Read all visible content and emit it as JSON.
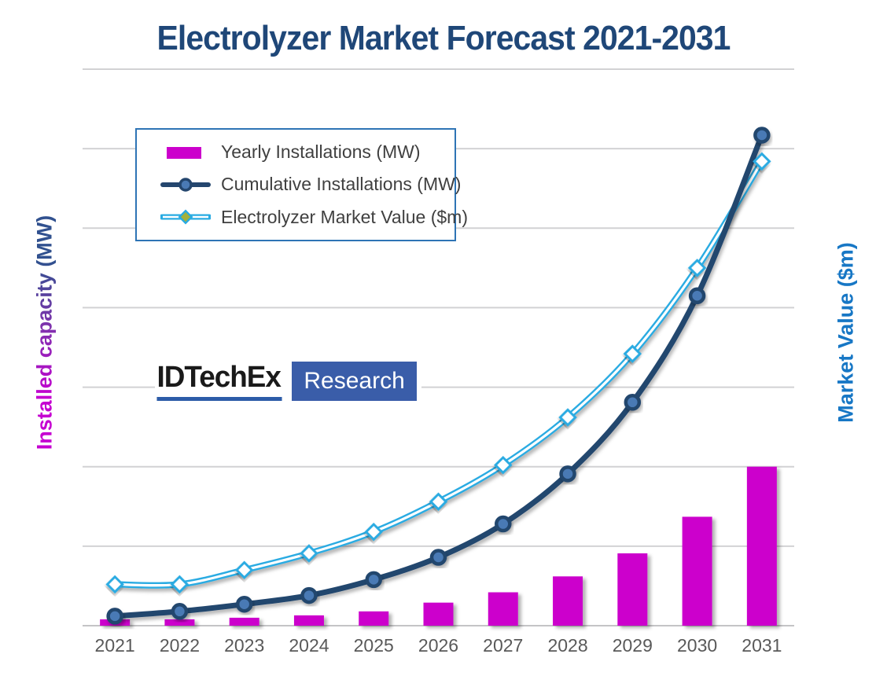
{
  "title": "Electrolyzer Market Forecast 2021-2031",
  "legend": {
    "items": [
      {
        "label": "Yearly Installations (MW)",
        "swatch": "magenta-bar"
      },
      {
        "label": "Cumulative Installations (MW)",
        "swatch": "navy-line-circle-marker"
      },
      {
        "label": "Electrolyzer Market Value ($m)",
        "swatch": "cyan-line-diamond-marker"
      }
    ]
  },
  "axes": {
    "left_title": "Installed  capacity (MW)",
    "right_title": "Market Value ($m)"
  },
  "logo": {
    "wordmark": "IDTechEx",
    "research_label": "Research"
  },
  "colors": {
    "title": "#1F4778",
    "bar": "#CC00CC",
    "cumulative_line": "#24466E",
    "cumulative_marker_fill": "#4A7AB5",
    "market_line": "#29ABE2",
    "market_marker_fill": "#FFFFFF",
    "legend_diamond_fill": "#A3B13C",
    "axis_text": "#595959",
    "gridline": "#D2D2D4",
    "axis_line": "#C4C4C6",
    "legend_border": "#2E74B5",
    "legend_text": "#404040",
    "right_axis": "#1777C5",
    "left_axis_gradient": [
      "#C500D1",
      "#8031AE",
      "#31518F"
    ],
    "logo_box": "#3A5DA9",
    "logo_underline": "#2D5CA8"
  },
  "chart_data": {
    "type": "bar+line combo",
    "categories": [
      "2021",
      "2022",
      "2023",
      "2024",
      "2025",
      "2026",
      "2027",
      "2028",
      "2029",
      "2030",
      "2031"
    ],
    "series": [
      {
        "name": "Yearly Installations (MW)",
        "type": "bar",
        "axis": "left",
        "values": [
          0.08,
          0.08,
          0.1,
          0.13,
          0.18,
          0.29,
          0.42,
          0.62,
          0.91,
          1.37,
          2.0
        ]
      },
      {
        "name": "Cumulative Installations (MW)",
        "type": "line",
        "marker": "circle",
        "axis": "left",
        "values": [
          0.12,
          0.18,
          0.27,
          0.38,
          0.58,
          0.86,
          1.28,
          1.91,
          2.81,
          4.15,
          6.17
        ]
      },
      {
        "name": "Electrolyzer Market Value ($m)",
        "type": "line",
        "marker": "diamond",
        "axis": "right",
        "values": [
          0.52,
          0.52,
          0.7,
          0.91,
          1.18,
          1.56,
          2.02,
          2.62,
          3.42,
          4.5,
          5.84
        ]
      }
    ],
    "ylim": [
      0,
      7
    ],
    "grid": true,
    "legend_position": "upper-left inside",
    "note": "Both value axes show no numeric tick labels in the source image; values are estimated in gridline units (1 unit = one horizontal gridline interval, 7 intervals total)."
  }
}
